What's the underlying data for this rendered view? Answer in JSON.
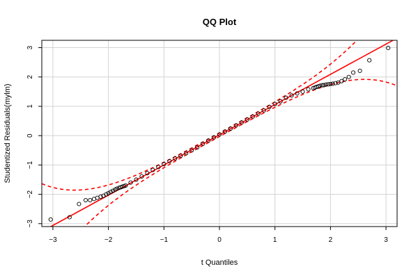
{
  "chart_data": {
    "type": "scatter",
    "title": "QQ Plot",
    "xlabel": "t Quantiles",
    "ylabel": "Studentized Residuals(mylm)",
    "xlim": [
      -3.2,
      3.2
    ],
    "ylim": [
      -3.1,
      3.25
    ],
    "xticks": [
      -3,
      -2,
      -1,
      0,
      1,
      2,
      3
    ],
    "xtick_labels": [
      "−3",
      "−2",
      "−1",
      "0",
      "1",
      "2",
      "3"
    ],
    "yticks": [
      -3,
      -2,
      -1,
      0,
      1,
      2,
      3
    ],
    "ytick_labels": [
      "−3",
      "−2",
      "−1",
      "0",
      "1",
      "2",
      "3"
    ],
    "grid": true,
    "legend": "none",
    "reference_line": {
      "slope": 1.03,
      "intercept": 0.03,
      "color": "#ff0000"
    },
    "confidence_band": {
      "color": "#ff0000",
      "style": "dashed"
    },
    "point_style": {
      "shape": "open-circle",
      "color": "#000000"
    },
    "points": {
      "x": [
        -3.04,
        -2.7,
        -2.53,
        -2.41,
        -2.33,
        -2.26,
        -2.2,
        -2.14,
        -2.09,
        -2.04,
        -2.0,
        -1.96,
        -1.92,
        -1.88,
        -1.85,
        -1.81,
        -1.78,
        -1.75,
        -1.72,
        -1.69,
        -1.6,
        -1.5,
        -1.4,
        -1.3,
        -1.2,
        -1.1,
        -1.0,
        -0.9,
        -0.8,
        -0.7,
        -0.6,
        -0.5,
        -0.4,
        -0.3,
        -0.2,
        -0.1,
        0.0,
        0.1,
        0.2,
        0.3,
        0.4,
        0.5,
        0.6,
        0.7,
        0.8,
        0.9,
        1.0,
        1.1,
        1.2,
        1.3,
        1.4,
        1.5,
        1.6,
        1.69,
        1.72,
        1.75,
        1.78,
        1.81,
        1.85,
        1.88,
        1.92,
        1.96,
        2.0,
        2.04,
        2.09,
        2.14,
        2.2,
        2.26,
        2.33,
        2.41,
        2.53,
        2.7,
        3.04
      ],
      "y": [
        -2.86,
        -2.78,
        -2.33,
        -2.2,
        -2.2,
        -2.16,
        -2.12,
        -2.08,
        -2.05,
        -2.0,
        -1.96,
        -1.92,
        -1.88,
        -1.84,
        -1.81,
        -1.78,
        -1.76,
        -1.74,
        -1.72,
        -1.7,
        -1.6,
        -1.5,
        -1.39,
        -1.28,
        -1.17,
        -1.07,
        -0.97,
        -0.87,
        -0.78,
        -0.69,
        -0.6,
        -0.5,
        -0.4,
        -0.28,
        -0.17,
        -0.06,
        0.04,
        0.14,
        0.24,
        0.35,
        0.45,
        0.55,
        0.65,
        0.75,
        0.86,
        0.98,
        1.08,
        1.17,
        1.29,
        1.37,
        1.44,
        1.5,
        1.58,
        1.62,
        1.64,
        1.66,
        1.68,
        1.7,
        1.72,
        1.72,
        1.74,
        1.75,
        1.76,
        1.77,
        1.79,
        1.81,
        1.86,
        1.92,
        2.0,
        2.15,
        2.21,
        2.57,
        2.99
      ]
    }
  }
}
